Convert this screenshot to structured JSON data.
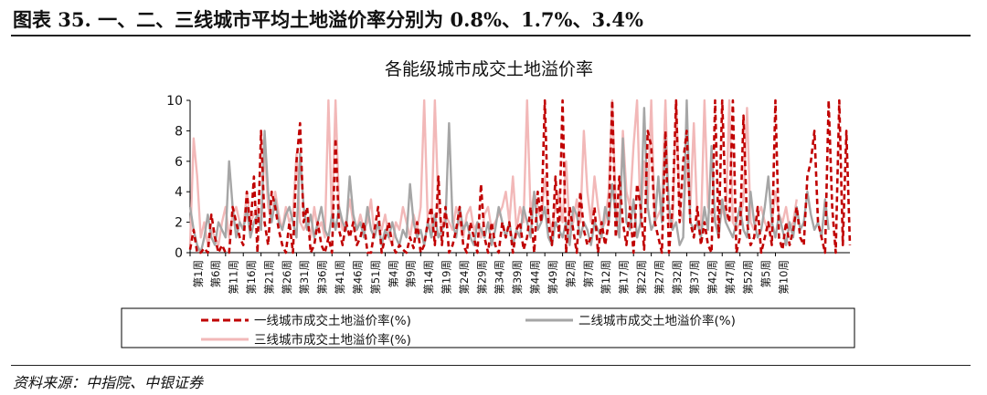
{
  "figure": {
    "title": "图表 35. 一、二、三线城市平均土地溢价率分别为 0.8%、1.7%、3.4%",
    "source": "资料来源：中指院、中银证券"
  },
  "colors": {
    "tier1": "#c00000",
    "tier2": "#a6a6a6",
    "tier3": "#f2b8b8"
  },
  "chart_data": {
    "type": "line",
    "title": "各能级城市成交土地溢价率",
    "xlabel": "",
    "ylabel": "",
    "ylim": [
      0,
      10
    ],
    "yticks": [
      0,
      2,
      4,
      6,
      8,
      10
    ],
    "grid": false,
    "legend_position": "bottom",
    "x_tick_labels": [
      "第1周",
      "第6周",
      "第11周",
      "第16周",
      "第21周",
      "第26周",
      "第31周",
      "第36周",
      "第41周",
      "第46周",
      "第51周",
      "第4周",
      "第9周",
      "第14周",
      "第19周",
      "第24周",
      "第29周",
      "第34周",
      "第39周",
      "第44周",
      "第49周",
      "第2周",
      "第7周",
      "第12周",
      "第17周",
      "第22周",
      "第27周",
      "第32周",
      "第37周",
      "第42周",
      "第47周",
      "第52周",
      "第5周",
      "第10周"
    ],
    "tick_every_n_points": 5,
    "series": [
      {
        "name": "一线城市成交土地溢价率(%)",
        "color_key": "tier1",
        "dash": "dashed",
        "values": [
          0.2,
          1.5,
          0,
          0,
          0.3,
          0,
          2.5,
          1,
          0,
          0.5,
          0,
          0,
          3,
          2,
          1,
          0.5,
          4,
          1.5,
          5,
          0,
          8,
          2,
          0.5,
          4,
          3,
          1.5,
          0.5,
          0,
          2,
          0,
          6,
          8.5,
          2,
          3,
          0,
          0.5,
          2,
          0.5,
          0,
          1,
          0,
          7.5,
          1.5,
          0.5,
          2,
          1,
          2,
          0.5,
          1,
          2,
          0,
          0,
          1.5,
          3,
          0,
          1,
          2,
          0.5,
          0,
          0.5,
          0.2,
          0,
          1,
          0.3,
          2,
          0,
          0.5,
          2,
          3,
          0.5,
          5,
          0.5,
          3,
          0,
          0.5,
          1.5,
          3,
          0.5,
          0,
          2,
          1,
          0,
          4.5,
          1,
          0,
          2,
          0.5,
          0,
          2,
          1,
          2,
          0,
          1.5,
          2,
          0.2,
          1,
          3,
          0,
          4,
          2,
          10,
          2,
          0.5,
          5,
          1,
          10,
          0,
          3,
          1.5,
          0,
          4,
          1.5,
          0.5,
          1,
          3,
          0,
          2,
          0.5,
          2,
          10,
          1,
          5,
          2,
          0.5,
          3,
          0,
          4.5,
          3,
          0.2,
          8,
          7,
          2,
          1,
          0,
          8,
          0,
          3,
          10,
          2,
          6,
          8,
          2,
          1,
          3,
          0.5,
          2,
          0.5,
          0,
          10,
          1,
          10,
          3,
          2,
          10,
          0,
          1,
          9,
          2,
          0.5,
          1,
          3,
          0,
          1,
          2,
          0.5,
          10,
          1,
          0.2,
          2,
          0.5,
          1.5,
          3,
          1,
          0.5,
          5,
          6,
          8,
          2,
          1,
          0,
          10,
          3,
          0,
          10,
          0.5,
          8,
          0.5
        ],
        "note": "weekly values read approximately from the plot; values above 10 clipped to axis maximum"
      },
      {
        "name": "二线城市成交土地溢价率(%)",
        "color_key": "tier2",
        "dash": "solid",
        "values": [
          3,
          1.5,
          0.5,
          0,
          1,
          2.5,
          1,
          0.5,
          2,
          1.5,
          1,
          6,
          3,
          1,
          2,
          1.5,
          3,
          1,
          2,
          2.5,
          1.5,
          8,
          4,
          2,
          3.5,
          2,
          1.5,
          2.5,
          3,
          2,
          1,
          6.5,
          3,
          1.5,
          2.5,
          1,
          2,
          3,
          1.5,
          1,
          2.5,
          1.5,
          3,
          2,
          1.5,
          5,
          2.5,
          1.5,
          2,
          1,
          3,
          1.5,
          1,
          2,
          0.5,
          1.5,
          1,
          2,
          1,
          0.5,
          1.5,
          1,
          4.5,
          2,
          1,
          1.5,
          0.5,
          2,
          1,
          2.5,
          1,
          1.5,
          2,
          8.5,
          2,
          1,
          3,
          1.5,
          2,
          1,
          0.5,
          2,
          1.5,
          1,
          2,
          0.5,
          1.5,
          3,
          2,
          1,
          2,
          0.5,
          1.5,
          1,
          3,
          2,
          1,
          4,
          1.5,
          2,
          3,
          1,
          0.5,
          2,
          1.5,
          1,
          2,
          0.5,
          3,
          2.5,
          1,
          2,
          1.5,
          0.5,
          2,
          1.5,
          1,
          3,
          2,
          4.5,
          2.5,
          1,
          7.5,
          2,
          1.5,
          3.5,
          1,
          2,
          9.5,
          3,
          1.5,
          2,
          5,
          2,
          7.5,
          3,
          1.5,
          2,
          0.5,
          1,
          10,
          2,
          1.5,
          2,
          1,
          3,
          1.5,
          7,
          2,
          1,
          3.5,
          2,
          1.5,
          1,
          2,
          3,
          1.5,
          1,
          4,
          2,
          1,
          1.5,
          3,
          5,
          2,
          1,
          2.5,
          1.5,
          0.5,
          2,
          1,
          3,
          1.5,
          2,
          4,
          2.5,
          1.5,
          2,
          1,
          3.5,
          1.5
        ],
        "note": "weekly values read approximately from the plot"
      },
      {
        "name": "三线城市成交土地溢价率(%)",
        "color_key": "tier3",
        "dash": "solid",
        "values": [
          0.5,
          7.5,
          5,
          1,
          2,
          0.5,
          1.5,
          1,
          0.5,
          2,
          3,
          1,
          2.5,
          3,
          2,
          1.5,
          4,
          2,
          2.5,
          3,
          1.5,
          7,
          3,
          2,
          4,
          2.5,
          1.5,
          3,
          2,
          2.5,
          6.5,
          2,
          1.5,
          2,
          1,
          3,
          1.5,
          2,
          1,
          10,
          2,
          10,
          3,
          1.5,
          2,
          3.5,
          2,
          1.5,
          2.5,
          1.5,
          2,
          3.5,
          1,
          2,
          1.5,
          2.5,
          1,
          0.5,
          2,
          1.5,
          3,
          2,
          1,
          2.5,
          1.5,
          3,
          10,
          2,
          1.5,
          10,
          3,
          1.5,
          2.5,
          2,
          1.5,
          3,
          2,
          1,
          2.5,
          3,
          1.5,
          2,
          1,
          2.5,
          3,
          1.5,
          2,
          2.5,
          3,
          4,
          2,
          5,
          1.5,
          3,
          2,
          10,
          2.5,
          4,
          3,
          2,
          5,
          2.5,
          1.5,
          3,
          4,
          2,
          6,
          1.5,
          2,
          3.5,
          2,
          8,
          4,
          2,
          5,
          3,
          1.5,
          2,
          4,
          10,
          3,
          2,
          8,
          4,
          3,
          7,
          10,
          2,
          6,
          3,
          10,
          2,
          2.5,
          3,
          10,
          2,
          1.5,
          10,
          3,
          2,
          6,
          3,
          8.5,
          2,
          1.5,
          10,
          3,
          2.5,
          2,
          1.5,
          3,
          2,
          10,
          2,
          1.5,
          2,
          3.5,
          9.5,
          2,
          1.5,
          2.5,
          3,
          2,
          1.5,
          2,
          4,
          2.5,
          2,
          3,
          1.5,
          2,
          3.5
        ],
        "note": "weekly values read approximately from the plot; values above 10 clipped to axis maximum"
      }
    ]
  }
}
